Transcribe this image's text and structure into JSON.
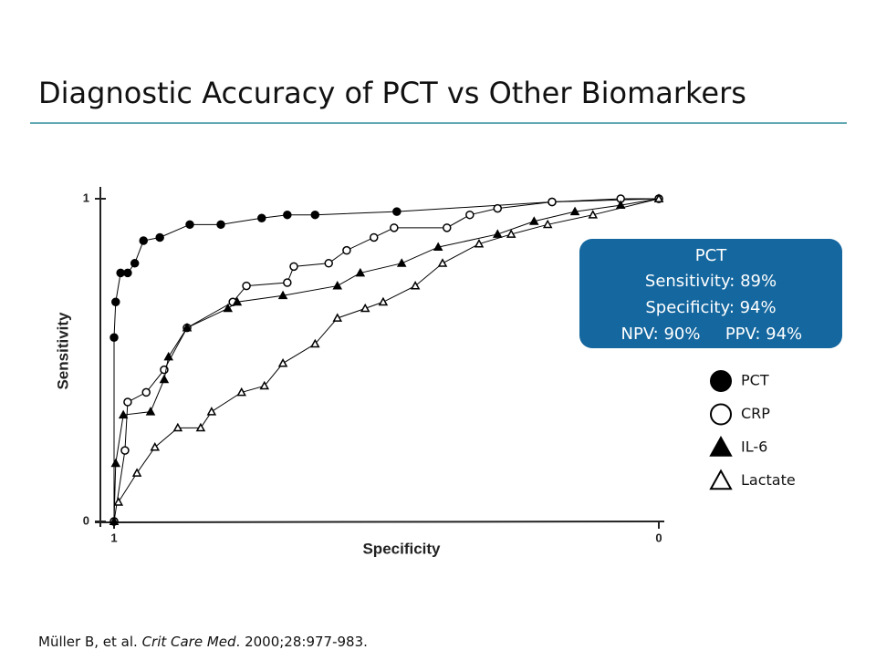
{
  "slide": {
    "title": "Diagnostic Accuracy of PCT vs Other Biomarkers",
    "callout": {
      "title": "PCT",
      "lines": [
        "Sensitivity: 89%",
        "Specificity: 94%"
      ],
      "npv": "NPV: 90%",
      "ppv": "PPV: 94%"
    },
    "citation": {
      "authors": "Müller B, et al. ",
      "journal": "Crit Care Med",
      "rest": ". 2000;28:977-983."
    }
  },
  "chart_data": {
    "type": "line",
    "x_label": "Specificity",
    "y_label": "Sensitivity",
    "xlim": [
      1,
      0
    ],
    "ylim": [
      0,
      1
    ],
    "xticks": [
      1,
      0
    ],
    "yticks": [
      0,
      1
    ],
    "legend": "right",
    "series": [
      {
        "name": "PCT",
        "color": "#000000",
        "marker": "circle",
        "marker_fill": "#000000",
        "x": [
          1,
          1,
          0.997,
          0.988,
          0.975,
          0.962,
          0.946,
          0.916,
          0.861,
          0.804,
          0.729,
          0.682,
          0.631,
          0.481,
          0.196,
          0
        ],
        "values": [
          0,
          0.57,
          0.68,
          0.77,
          0.77,
          0.8,
          0.87,
          0.88,
          0.92,
          0.92,
          0.94,
          0.95,
          0.95,
          0.96,
          0.99,
          1
        ]
      },
      {
        "name": "CRP",
        "color": "#000000",
        "marker": "circle",
        "marker_fill": "#ffffff",
        "x": [
          1,
          0.98,
          0.975,
          0.941,
          0.908,
          0.866,
          0.782,
          0.757,
          0.682,
          0.67,
          0.606,
          0.573,
          0.523,
          0.486,
          0.389,
          0.347,
          0.296,
          0.196,
          0.07,
          0
        ],
        "values": [
          0,
          0.22,
          0.37,
          0.4,
          0.47,
          0.6,
          0.68,
          0.73,
          0.74,
          0.79,
          0.8,
          0.84,
          0.88,
          0.91,
          0.91,
          0.95,
          0.97,
          0.99,
          1,
          1
        ]
      },
      {
        "name": "IL-6",
        "color": "#000000",
        "marker": "triangle",
        "marker_fill": "#000000",
        "x": [
          1,
          0.997,
          0.983,
          0.933,
          0.908,
          0.9,
          0.866,
          0.791,
          0.774,
          0.69,
          0.59,
          0.548,
          0.472,
          0.405,
          0.296,
          0.229,
          0.154,
          0.07,
          0
        ],
        "values": [
          0,
          0.18,
          0.33,
          0.34,
          0.44,
          0.51,
          0.6,
          0.66,
          0.68,
          0.7,
          0.73,
          0.77,
          0.8,
          0.85,
          0.89,
          0.93,
          0.96,
          0.98,
          1
        ]
      },
      {
        "name": "Lactate",
        "color": "#000000",
        "marker": "triangle",
        "marker_fill": "#ffffff",
        "x": [
          0.992,
          0.958,
          0.925,
          0.883,
          0.841,
          0.821,
          0.766,
          0.724,
          0.69,
          0.631,
          0.59,
          0.539,
          0.506,
          0.447,
          0.397,
          0.33,
          0.271,
          0.204,
          0.121,
          0
        ],
        "values": [
          0.06,
          0.15,
          0.23,
          0.29,
          0.29,
          0.34,
          0.4,
          0.42,
          0.49,
          0.55,
          0.63,
          0.66,
          0.68,
          0.73,
          0.8,
          0.86,
          0.89,
          0.92,
          0.95,
          1
        ]
      }
    ]
  }
}
